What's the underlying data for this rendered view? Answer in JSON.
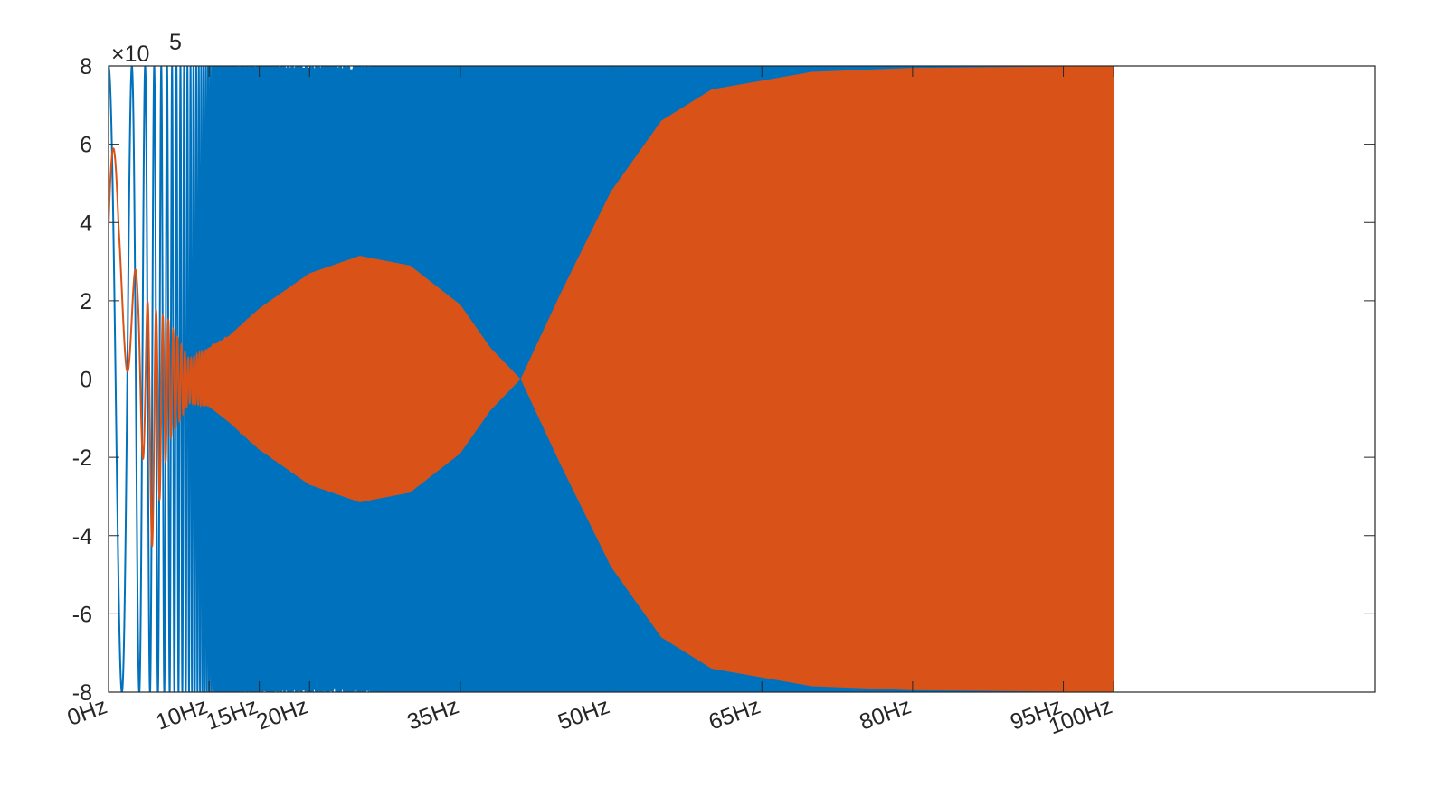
{
  "chart_data": {
    "type": "line",
    "title": "",
    "xlabel": "",
    "ylabel": "",
    "xlim": [
      0,
      126
    ],
    "ylim": [
      -800000,
      800000
    ],
    "y_exponent_label": {
      "base": "×10",
      "power": "5"
    },
    "yticks": [
      -8,
      -6,
      -4,
      -2,
      0,
      2,
      4,
      6,
      8
    ],
    "xticks": [
      {
        "value": 0,
        "label": "0Hz"
      },
      {
        "value": 10,
        "label": "10Hz"
      },
      {
        "value": 15,
        "label": "15Hz"
      },
      {
        "value": 20,
        "label": "20Hz"
      },
      {
        "value": 35,
        "label": "35Hz"
      },
      {
        "value": 50,
        "label": "50Hz"
      },
      {
        "value": 65,
        "label": "65Hz"
      },
      {
        "value": 80,
        "label": "80Hz"
      },
      {
        "value": 95,
        "label": "95Hz"
      },
      {
        "value": 100,
        "label": "100Hz"
      }
    ],
    "grid": false,
    "series": [
      {
        "color": "#0072BD",
        "description_points": [
          {
            "x": 0,
            "ymin": -800000,
            "ymax": 800000
          },
          {
            "x": 28,
            "ymin": -800000,
            "ymax": 800000
          },
          {
            "x": 100,
            "ymin": -800000,
            "ymax": 800000
          }
        ]
      },
      {
        "color": "#D95319",
        "envelope": [
          {
            "x": 0,
            "ymin": -20000,
            "ymax": 800000
          },
          {
            "x": 1,
            "ymin": 50000,
            "ymax": 440000
          },
          {
            "x": 3,
            "ymin": -20000,
            "ymax": 250000
          },
          {
            "x": 4,
            "ymin": -480000,
            "ymax": 190000
          },
          {
            "x": 6,
            "ymin": -160000,
            "ymax": 150000
          },
          {
            "x": 8,
            "ymin": -60000,
            "ymax": 50000
          },
          {
            "x": 10,
            "ymin": -70000,
            "ymax": 80000
          },
          {
            "x": 12,
            "ymin": -110000,
            "ymax": 110000
          },
          {
            "x": 15,
            "ymin": -180000,
            "ymax": 180000
          },
          {
            "x": 20,
            "ymin": -270000,
            "ymax": 270000
          },
          {
            "x": 25,
            "ymin": -315000,
            "ymax": 315000
          },
          {
            "x": 30,
            "ymin": -290000,
            "ymax": 290000
          },
          {
            "x": 35,
            "ymin": -190000,
            "ymax": 190000
          },
          {
            "x": 38,
            "ymin": -80000,
            "ymax": 80000
          },
          {
            "x": 41,
            "ymin": 0,
            "ymax": 0
          },
          {
            "x": 45,
            "ymin": -220000,
            "ymax": 220000
          },
          {
            "x": 50,
            "ymin": -480000,
            "ymax": 480000
          },
          {
            "x": 55,
            "ymin": -660000,
            "ymax": 660000
          },
          {
            "x": 60,
            "ymin": -740000,
            "ymax": 740000
          },
          {
            "x": 70,
            "ymin": -785000,
            "ymax": 785000
          },
          {
            "x": 80,
            "ymin": -795000,
            "ymax": 795000
          },
          {
            "x": 100,
            "ymin": -800000,
            "ymax": 800000
          }
        ]
      }
    ]
  }
}
